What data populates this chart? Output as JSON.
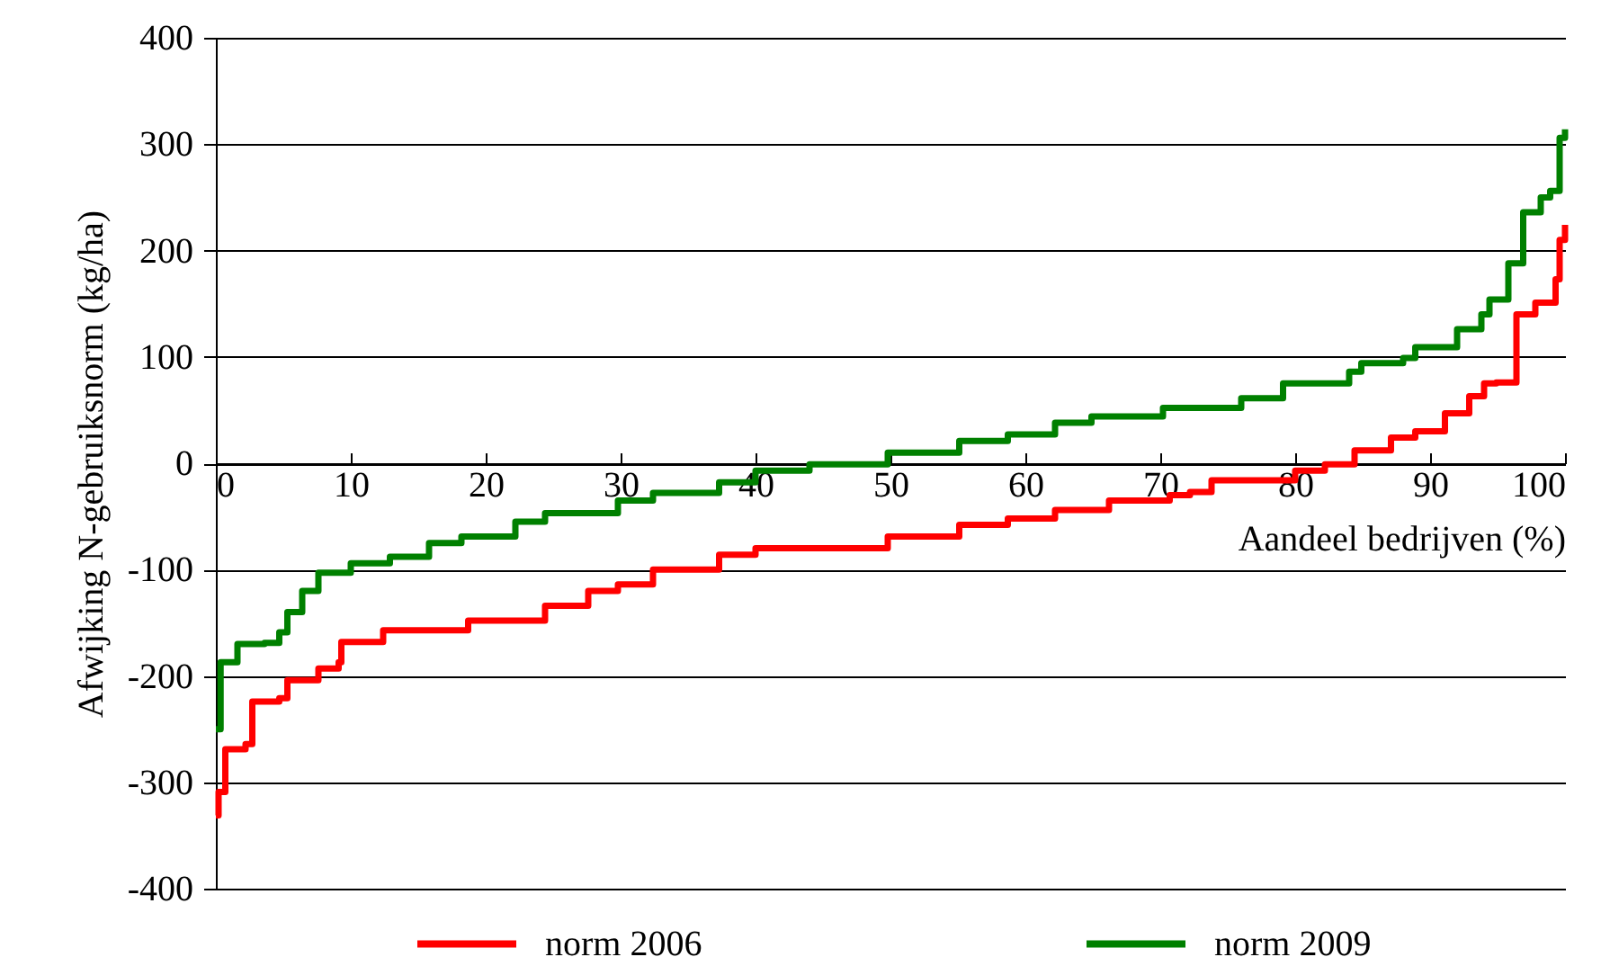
{
  "chart_data": {
    "type": "step",
    "xlabel": "Aandeel bedrijven (%)",
    "ylabel": "Afwijking N-gebruiksnorm (kg/ha)",
    "xlim": [
      0,
      100
    ],
    "xticks": [
      0,
      10,
      20,
      30,
      40,
      50,
      60,
      70,
      80,
      90,
      100
    ],
    "ylim": [
      -400,
      400
    ],
    "yticks": [
      -400,
      -300,
      -200,
      -100,
      0,
      100,
      200,
      300,
      400
    ],
    "grid": "y",
    "legend": "bottom",
    "line_style": "solid",
    "marker": "none",
    "series": [
      {
        "name": "norm 2006",
        "color": "#ff0000",
        "x": [
          0,
          0.2,
          0.7,
          2.2,
          2.7,
          4.7,
          5.3,
          7.6,
          9.1,
          9.3,
          12.4,
          15.1,
          18.7,
          24.4,
          27.6,
          29.8,
          32.4,
          37.3,
          40,
          44,
          49.8,
          55.1,
          58.7,
          62.2,
          66.2,
          70.7,
          72.2,
          73.8,
          80,
          82.2,
          84.4,
          87.1,
          88.9,
          91.1,
          92.9,
          94,
          94.9,
          96.4,
          97.8,
          99.3,
          99.6,
          100
        ],
        "values": [
          -331,
          -309,
          -269,
          -264,
          -224,
          -221,
          -204,
          -193,
          -187,
          -168,
          -157,
          -157,
          -148,
          -134,
          -120,
          -114,
          -100,
          -86,
          -80,
          -80,
          -69,
          -58,
          -52,
          -44,
          -35,
          -30,
          -27,
          -16,
          -7,
          -1,
          12,
          24,
          30,
          47,
          63,
          75,
          76,
          140,
          151,
          173,
          210,
          224
        ]
      },
      {
        "name": "norm 2009",
        "color": "#008000",
        "x": [
          0,
          0.35,
          1.6,
          3.6,
          4.7,
          5.3,
          6.4,
          7.6,
          10,
          12.9,
          14.7,
          15.8,
          18.2,
          22.2,
          24.4,
          26.7,
          29.8,
          32.4,
          37.3,
          40,
          44,
          49.8,
          55.1,
          58.7,
          62.2,
          64.9,
          70.2,
          76,
          79.1,
          81.1,
          84,
          84.9,
          88,
          88.9,
          92,
          93.8,
          94.4,
          95.8,
          96.9,
          98.2,
          98.9,
          99.6,
          100
        ],
        "values": [
          -250,
          -187,
          -170,
          -169,
          -159,
          -140,
          -120,
          -103,
          -94,
          -88,
          -88,
          -75,
          -69,
          -55,
          -47,
          -47,
          -35,
          -28,
          -18,
          -7,
          -1,
          10,
          21,
          27,
          38,
          44,
          52,
          61,
          75,
          75,
          86,
          94,
          99,
          109,
          126,
          140,
          154,
          188,
          236,
          250,
          256,
          306,
          314
        ]
      }
    ]
  }
}
